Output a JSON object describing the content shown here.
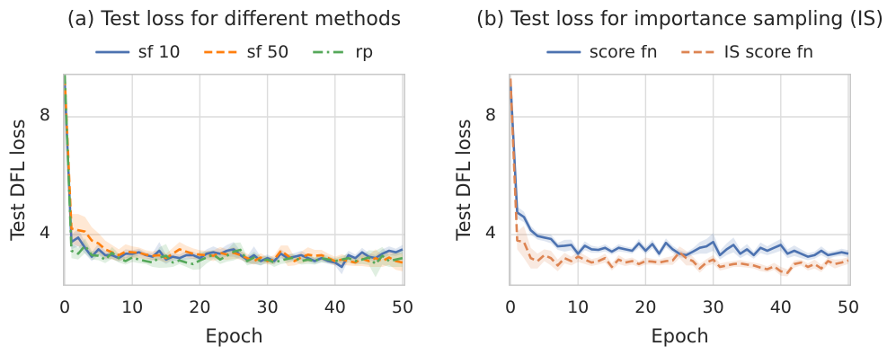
{
  "figure": {
    "background": "#ffffff",
    "text_color": "#262626",
    "grid_color": "#dcdcdc",
    "spine_color": "#c8c8c8",
    "band_opacity": 0.18
  },
  "chart_data": [
    {
      "type": "line",
      "title": "(a) Test loss for different methods",
      "xlabel": "Epoch",
      "ylabel": "Test DFL loss",
      "xticks": [
        0,
        10,
        20,
        30,
        40,
        50
      ],
      "yticks": [
        8,
        4
      ],
      "xlim": [
        0,
        50
      ],
      "ylim": [
        2.26,
        9.46
      ],
      "grid": true,
      "legend_position": "top-center",
      "x_start": 0,
      "x_step": 1,
      "series": [
        {
          "name": "sf 10",
          "color": "#4c72b0",
          "dash": "solid",
          "values": [
            9.2,
            3.75,
            3.9,
            3.55,
            3.25,
            3.5,
            3.3,
            3.3,
            3.2,
            3.35,
            3.35,
            3.4,
            3.3,
            3.25,
            3.45,
            3.15,
            3.25,
            3.2,
            3.3,
            3.3,
            3.2,
            3.35,
            3.4,
            3.35,
            3.45,
            3.5,
            3.3,
            3.15,
            3.3,
            3.1,
            3.2,
            3.1,
            3.35,
            3.2,
            3.25,
            3.3,
            3.2,
            3.1,
            3.2,
            3.1,
            3.05,
            2.9,
            3.3,
            3.2,
            3.4,
            3.25,
            3.2,
            3.35,
            3.45,
            3.4,
            3.5
          ],
          "band": [
            0.25,
            0.25,
            0.3,
            0.2,
            0.15,
            0.2,
            0.15,
            0.12,
            0.12,
            0.15,
            0.12,
            0.12,
            0.1,
            0.12,
            0.3,
            0.15,
            0.12,
            0.12,
            0.15,
            0.12,
            0.1,
            0.15,
            0.2,
            0.15,
            0.2,
            0.25,
            0.15,
            0.12,
            0.3,
            0.15,
            0.12,
            0.12,
            0.15,
            0.12,
            0.12,
            0.15,
            0.12,
            0.1,
            0.12,
            0.1,
            0.1,
            0.25,
            0.15,
            0.12,
            0.15,
            0.12,
            0.1,
            0.15,
            0.15,
            0.12,
            0.15
          ]
        },
        {
          "name": "sf 50",
          "color": "#ff7f0e",
          "dash": "dashed",
          "values": [
            9.35,
            4.2,
            4.15,
            4.1,
            3.8,
            3.7,
            3.5,
            3.4,
            3.3,
            3.42,
            3.4,
            3.38,
            3.32,
            3.28,
            3.3,
            3.2,
            3.35,
            3.5,
            3.42,
            3.35,
            3.32,
            3.3,
            3.28,
            3.38,
            3.32,
            3.38,
            3.3,
            3.2,
            3.1,
            3.22,
            3.1,
            3.15,
            3.45,
            3.28,
            3.1,
            3.22,
            3.32,
            3.28,
            3.3,
            3.2,
            3.1,
            3.15,
            3.1,
            3.05,
            3.18,
            3.1,
            3.2,
            3.1,
            3.22,
            3.1,
            3.05
          ],
          "band": [
            0.3,
            0.5,
            0.55,
            0.5,
            0.45,
            0.35,
            0.3,
            0.25,
            0.2,
            0.25,
            0.2,
            0.18,
            0.15,
            0.15,
            0.18,
            0.15,
            0.2,
            0.25,
            0.2,
            0.18,
            0.15,
            0.15,
            0.18,
            0.2,
            0.18,
            0.2,
            0.15,
            0.15,
            0.12,
            0.15,
            0.12,
            0.15,
            0.18,
            0.35,
            0.15,
            0.2,
            0.25,
            0.2,
            0.18,
            0.15,
            0.15,
            0.18,
            0.15,
            0.12,
            0.25,
            0.2,
            0.3,
            0.2,
            0.25,
            0.3,
            0.3
          ]
        },
        {
          "name": "rp",
          "color": "#55a85a",
          "dash": "dashdot",
          "values": [
            9.45,
            3.45,
            3.35,
            3.62,
            3.3,
            3.28,
            3.15,
            3.38,
            3.2,
            3.1,
            3.22,
            3.15,
            3.1,
            3.05,
            3.22,
            3.28,
            3.05,
            3.12,
            3.05,
            3.0,
            3.12,
            3.22,
            3.32,
            3.15,
            3.28,
            3.42,
            3.48,
            3.1,
            3.22,
            3.1,
            3.15,
            3.05,
            3.12,
            3.18,
            3.22,
            3.1,
            3.15,
            3.1,
            3.2,
            3.15,
            3.1,
            3.15,
            3.2,
            3.1,
            3.15,
            3.22,
            3.0,
            3.28,
            3.1,
            3.15,
            3.2
          ],
          "band": [
            0.25,
            0.25,
            0.2,
            0.25,
            0.15,
            0.15,
            0.12,
            0.2,
            0.15,
            0.12,
            0.15,
            0.12,
            0.1,
            0.15,
            0.35,
            0.4,
            0.15,
            0.12,
            0.15,
            0.2,
            0.3,
            0.2,
            0.15,
            0.15,
            0.2,
            0.3,
            0.25,
            0.15,
            0.2,
            0.15,
            0.12,
            0.15,
            0.12,
            0.15,
            0.12,
            0.12,
            0.15,
            0.12,
            0.15,
            0.12,
            0.1,
            0.12,
            0.15,
            0.12,
            0.15,
            0.25,
            0.45,
            0.3,
            0.2,
            0.25,
            0.3
          ]
        }
      ]
    },
    {
      "type": "line",
      "title": "(b) Test loss for importance sampling (IS)",
      "xlabel": "Epoch",
      "ylabel": "Test DFL loss",
      "xticks": [
        0,
        10,
        20,
        30,
        40,
        50
      ],
      "yticks": [
        8,
        4
      ],
      "xlim": [
        0,
        50
      ],
      "ylim": [
        2.26,
        9.46
      ],
      "grid": true,
      "legend_position": "top-center",
      "x_start": 0,
      "x_step": 1,
      "series": [
        {
          "name": "score fn",
          "color": "#4c72b0",
          "dash": "solid",
          "values": [
            9.2,
            4.75,
            4.6,
            4.15,
            3.95,
            3.9,
            3.85,
            3.6,
            3.62,
            3.65,
            3.35,
            3.62,
            3.5,
            3.48,
            3.55,
            3.42,
            3.55,
            3.5,
            3.45,
            3.7,
            3.45,
            3.68,
            3.35,
            3.72,
            3.5,
            3.35,
            3.3,
            3.42,
            3.55,
            3.6,
            3.75,
            3.3,
            3.5,
            3.65,
            3.35,
            3.5,
            3.3,
            3.55,
            3.45,
            3.55,
            3.65,
            3.35,
            3.45,
            3.35,
            3.25,
            3.3,
            3.45,
            3.3,
            3.35,
            3.4,
            3.35
          ],
          "band": [
            0.2,
            0.2,
            0.18,
            0.15,
            0.12,
            0.12,
            0.15,
            0.12,
            0.2,
            0.18,
            0.12,
            0.15,
            0.12,
            0.1,
            0.12,
            0.1,
            0.12,
            0.1,
            0.1,
            0.15,
            0.12,
            0.15,
            0.12,
            0.15,
            0.12,
            0.12,
            0.1,
            0.12,
            0.2,
            0.25,
            0.3,
            0.15,
            0.2,
            0.25,
            0.15,
            0.18,
            0.12,
            0.18,
            0.15,
            0.18,
            0.2,
            0.15,
            0.18,
            0.15,
            0.12,
            0.12,
            0.15,
            0.12,
            0.1,
            0.12,
            0.12
          ]
        },
        {
          "name": "IS score fn",
          "color": "#dd8452",
          "dash": "dashed",
          "values": [
            9.3,
            3.8,
            3.75,
            3.2,
            3.1,
            3.3,
            3.2,
            2.95,
            3.2,
            3.1,
            3.25,
            3.15,
            3.05,
            3.1,
            3.2,
            2.9,
            3.15,
            3.05,
            3.1,
            3.0,
            3.1,
            3.08,
            3.05,
            3.1,
            3.12,
            3.4,
            3.2,
            3.1,
            2.85,
            3.05,
            3.15,
            2.9,
            2.95,
            3.0,
            3.02,
            2.98,
            2.95,
            2.88,
            2.82,
            2.92,
            2.75,
            2.7,
            3.0,
            3.05,
            2.9,
            3.0,
            2.85,
            3.1,
            3.0,
            3.05,
            3.12
          ],
          "band": [
            0.25,
            0.3,
            0.55,
            0.35,
            0.25,
            0.2,
            0.25,
            0.2,
            0.18,
            0.15,
            0.18,
            0.15,
            0.12,
            0.12,
            0.15,
            0.12,
            0.15,
            0.12,
            0.12,
            0.1,
            0.12,
            0.1,
            0.1,
            0.12,
            0.15,
            0.2,
            0.25,
            0.15,
            0.15,
            0.12,
            0.15,
            0.12,
            0.12,
            0.1,
            0.12,
            0.1,
            0.1,
            0.12,
            0.1,
            0.12,
            0.15,
            0.12,
            0.12,
            0.1,
            0.12,
            0.15,
            0.12,
            0.12,
            0.15,
            0.12,
            0.12
          ]
        }
      ]
    }
  ]
}
